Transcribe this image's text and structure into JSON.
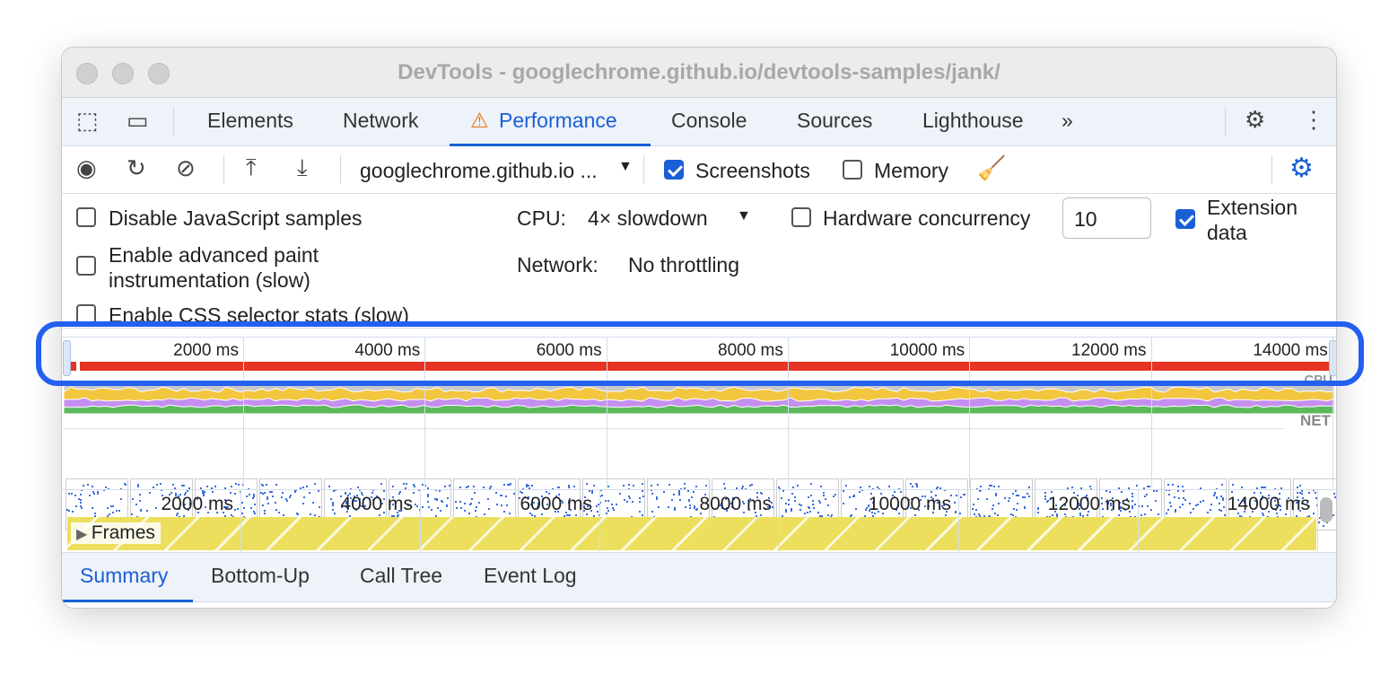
{
  "window": {
    "title": "DevTools - googlechrome.github.io/devtools-samples/jank/"
  },
  "tabs": [
    {
      "label": "Elements"
    },
    {
      "label": "Network"
    },
    {
      "label": "Performance",
      "active": true,
      "warning": true
    },
    {
      "label": "Console"
    },
    {
      "label": "Sources"
    },
    {
      "label": "Lighthouse"
    }
  ],
  "toolbar": {
    "target": "googlechrome.github.io ...",
    "screenshots": {
      "label": "Screenshots",
      "checked": true
    },
    "memory": {
      "label": "Memory",
      "checked": false
    }
  },
  "settings": {
    "disable_js": {
      "label": "Disable JavaScript samples",
      "checked": false
    },
    "adv_paint": {
      "label1": "Enable advanced paint",
      "label2": "instrumentation (slow)",
      "checked": false
    },
    "css_stats": {
      "label": "Enable CSS selector stats (slow)",
      "checked": false
    },
    "cpu_label": "CPU:",
    "cpu_value": "4× slowdown",
    "network_label": "Network:",
    "network_value": "No throttling",
    "hw": {
      "label": "Hardware concurrency",
      "checked": false,
      "value": "10"
    },
    "ext": {
      "label1": "Extension",
      "label2": "data",
      "checked": true
    }
  },
  "overview": {
    "ticks": [
      "2000 ms",
      "4000 ms",
      "6000 ms",
      "8000 ms",
      "10000 ms",
      "12000 ms",
      "14000 ms"
    ],
    "net_label": "NET",
    "cpu_label": "CPU"
  },
  "timeline": {
    "ticks": [
      "2000 ms",
      "4000 ms",
      "6000 ms",
      "8000 ms",
      "10000 ms",
      "12000 ms",
      "14000 ms"
    ],
    "frames_label": "Frames"
  },
  "bottom_tabs": [
    {
      "label": "Summary",
      "active": true
    },
    {
      "label": "Bottom-Up"
    },
    {
      "label": "Call Tree"
    },
    {
      "label": "Event Log"
    }
  ],
  "colors": {
    "accent": "#1a5fd6",
    "highlight": "#2360f0",
    "long_task": "#e63323",
    "scripting": "#f3c640",
    "rendering": "#c58ff0",
    "painting": "#5cb85c",
    "frames": "#ecdf5d"
  }
}
